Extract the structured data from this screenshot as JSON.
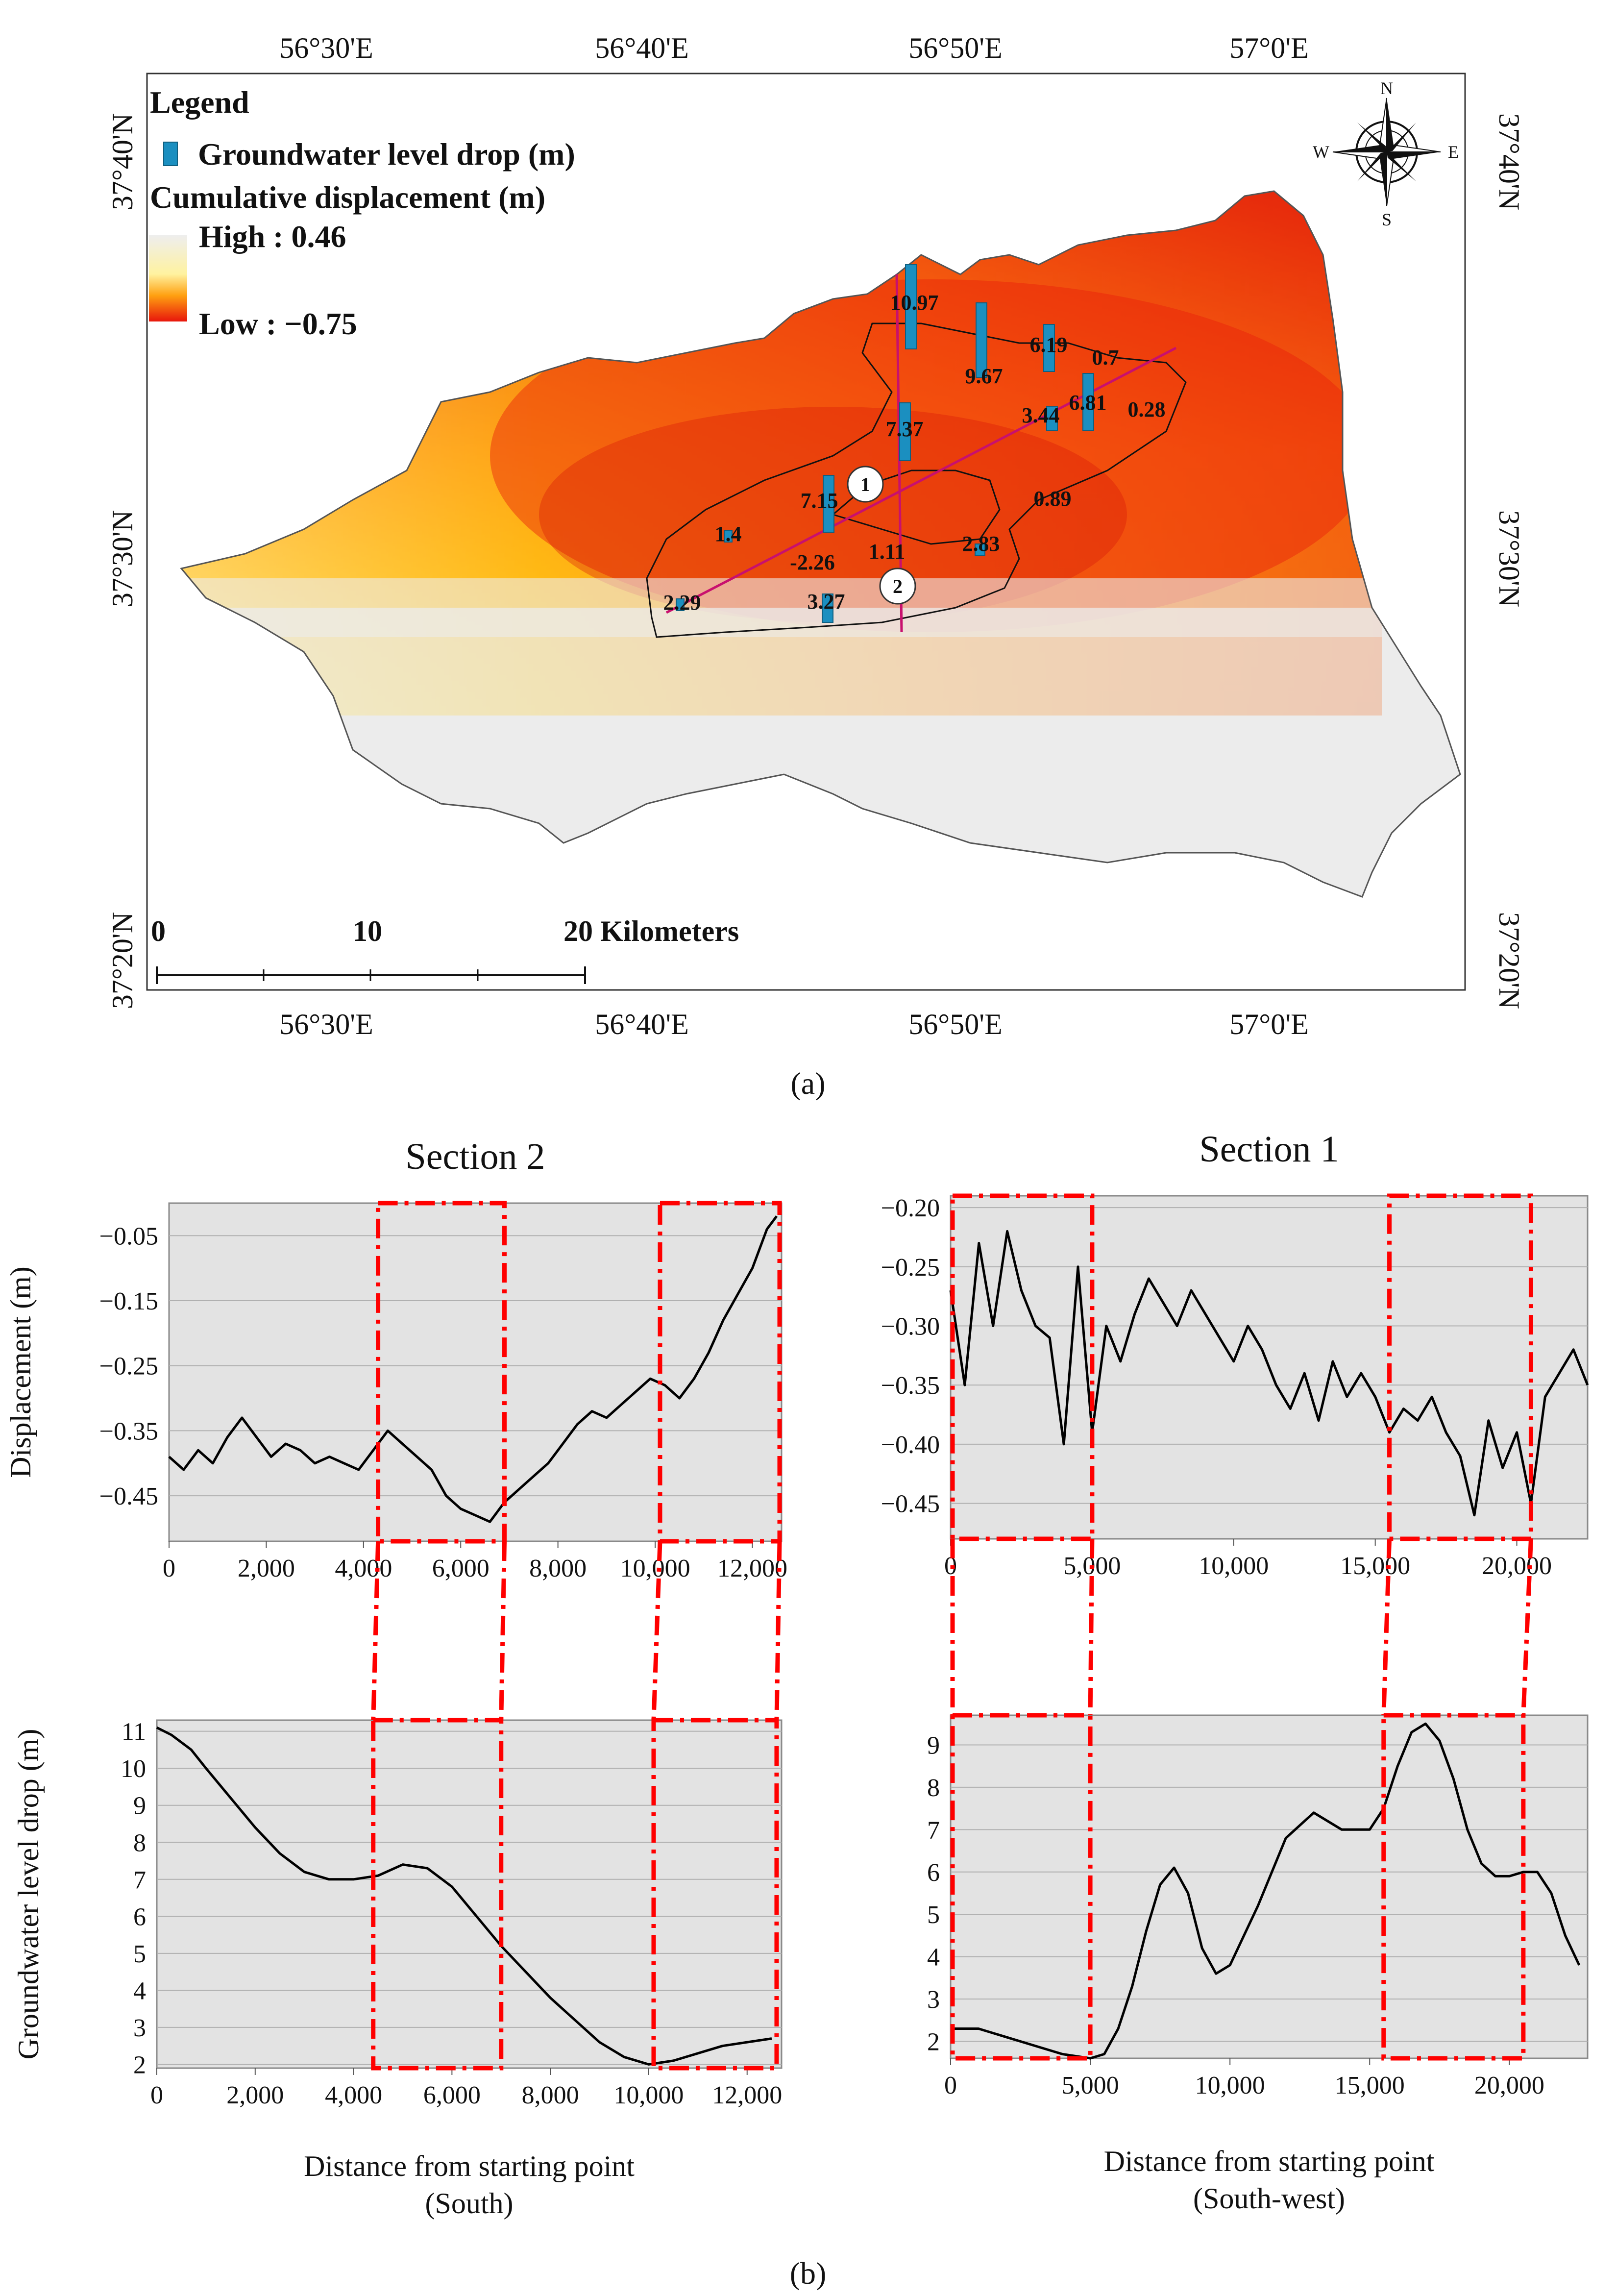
{
  "panel_a": {
    "caption": "(a)",
    "top_lon_labels": [
      "56°30'E",
      "56°40'E",
      "56°50'E",
      "57°0'E"
    ],
    "bottom_lon_labels": [
      "56°30'E",
      "56°40'E",
      "56°50'E",
      "57°0'E"
    ],
    "left_lat_labels": [
      "37°40'N",
      "37°30'N",
      "37°20'N"
    ],
    "right_lat_labels": [
      "37°40'N",
      "37°30'N",
      "37°20'N"
    ],
    "legend": {
      "title": "Legend",
      "well_label": "Groundwater level drop (m)",
      "displacement_title": "Cumulative displacement (m)",
      "high_label": "High : 0.46",
      "low_label": "Low : −0.75",
      "well_color": "#1b8fc0",
      "ramp_high_color": "#eeeeee",
      "ramp_low_color": "#e8160c"
    },
    "north_arrow": {
      "n": "N",
      "s": "S",
      "e": "E",
      "w": "W"
    },
    "scale_bar": {
      "ticks": [
        "0",
        "10",
        "20 Kilometers"
      ]
    },
    "section_markers": [
      "1",
      "2"
    ],
    "line_color": "#c8106e",
    "well_values": [
      "10.97",
      "6.19",
      "0.7",
      "9.67",
      "6.81",
      "0.28",
      "3.44",
      "7.37",
      "7.15",
      "0.89",
      "1.4",
      "1.11",
      "2.83",
      "-2.26",
      "2.29",
      "3.27"
    ]
  },
  "panel_b": {
    "caption": "(b)",
    "highlight_color": "#ff0000"
  },
  "chart_data": [
    {
      "type": "line",
      "title": "Section 2",
      "xlabel": "",
      "ylabel": "Displacement (m)",
      "xlim": [
        0,
        12600
      ],
      "ylim": [
        -0.52,
        0.0
      ],
      "xticks": [
        0,
        2000,
        4000,
        6000,
        8000,
        10000,
        12000
      ],
      "xtick_labels": [
        "0",
        "2,000",
        "4,000",
        "6,000",
        "8,000",
        "10,000",
        "12,000"
      ],
      "yticks": [
        -0.05,
        -0.15,
        -0.25,
        -0.35,
        -0.45
      ],
      "ytick_labels": [
        "−0.05",
        "−0.15",
        "−0.25",
        "−0.35",
        "−0.45"
      ],
      "series": [
        {
          "name": "Displacement",
          "x": [
            0,
            300,
            600,
            900,
            1200,
            1500,
            1800,
            2100,
            2400,
            2700,
            3000,
            3300,
            3600,
            3900,
            4200,
            4500,
            4800,
            5100,
            5400,
            5700,
            6000,
            6300,
            6600,
            6900,
            7200,
            7500,
            7800,
            8100,
            8400,
            8700,
            9000,
            9300,
            9600,
            9900,
            10200,
            10500,
            10800,
            11100,
            11400,
            11700,
            12000,
            12300,
            12500
          ],
          "y": [
            -0.39,
            -0.41,
            -0.38,
            -0.4,
            -0.36,
            -0.33,
            -0.36,
            -0.39,
            -0.37,
            -0.38,
            -0.4,
            -0.39,
            -0.4,
            -0.41,
            -0.38,
            -0.35,
            -0.37,
            -0.39,
            -0.41,
            -0.45,
            -0.47,
            -0.48,
            -0.49,
            -0.46,
            -0.44,
            -0.42,
            -0.4,
            -0.37,
            -0.34,
            -0.32,
            -0.33,
            -0.31,
            -0.29,
            -0.27,
            -0.28,
            -0.3,
            -0.27,
            -0.23,
            -0.18,
            -0.14,
            -0.1,
            -0.04,
            -0.02
          ]
        }
      ],
      "highlight_ranges": [
        [
          4300,
          6900
        ],
        [
          10100,
          12600
        ]
      ]
    },
    {
      "type": "line",
      "title": "Section 1",
      "xlabel": "",
      "ylabel": "",
      "xlim": [
        0,
        22500
      ],
      "ylim": [
        -0.48,
        -0.19
      ],
      "xticks": [
        0,
        5000,
        10000,
        15000,
        20000
      ],
      "xtick_labels": [
        "0",
        "5,000",
        "10,000",
        "15,000",
        "20,000"
      ],
      "yticks": [
        -0.2,
        -0.25,
        -0.3,
        -0.35,
        -0.4,
        -0.45
      ],
      "ytick_labels": [
        "−0.20",
        "−0.25",
        "−0.30",
        "−0.35",
        "−0.40",
        "−0.45"
      ],
      "series": [
        {
          "name": "Displacement",
          "x": [
            0,
            500,
            1000,
            1500,
            2000,
            2500,
            3000,
            3500,
            4000,
            4500,
            5000,
            5500,
            6000,
            6500,
            7000,
            7500,
            8000,
            8500,
            9000,
            9500,
            10000,
            10500,
            11000,
            11500,
            12000,
            12500,
            13000,
            13500,
            14000,
            14500,
            15000,
            15500,
            16000,
            16500,
            17000,
            17500,
            18000,
            18500,
            19000,
            19500,
            20000,
            20500,
            21000,
            21500,
            22000,
            22500
          ],
          "y": [
            -0.27,
            -0.35,
            -0.23,
            -0.3,
            -0.22,
            -0.27,
            -0.3,
            -0.31,
            -0.4,
            -0.25,
            -0.39,
            -0.3,
            -0.33,
            -0.29,
            -0.26,
            -0.28,
            -0.3,
            -0.27,
            -0.29,
            -0.31,
            -0.33,
            -0.3,
            -0.32,
            -0.35,
            -0.37,
            -0.34,
            -0.38,
            -0.33,
            -0.36,
            -0.34,
            -0.36,
            -0.39,
            -0.37,
            -0.38,
            -0.36,
            -0.39,
            -0.41,
            -0.46,
            -0.38,
            -0.42,
            -0.39,
            -0.45,
            -0.36,
            -0.34,
            -0.32,
            -0.35
          ]
        }
      ],
      "highlight_ranges": [
        [
          0,
          5000
        ],
        [
          15500,
          20500
        ]
      ]
    },
    {
      "type": "line",
      "title": "",
      "xlabel": "Distance from starting point",
      "xlabel_sub": "(South)",
      "ylabel": "Groundwater level drop (m)",
      "xlim": [
        0,
        12700
      ],
      "ylim": [
        1.9,
        11.3
      ],
      "xticks": [
        0,
        2000,
        4000,
        6000,
        8000,
        10000,
        12000
      ],
      "xtick_labels": [
        "0",
        "2,000",
        "4,000",
        "6,000",
        "8,000",
        "10,000",
        "12,000"
      ],
      "yticks": [
        2,
        3,
        4,
        5,
        6,
        7,
        8,
        9,
        10,
        11
      ],
      "ytick_labels": [
        "2",
        "3",
        "4",
        "5",
        "6",
        "7",
        "8",
        "9",
        "10",
        "11"
      ],
      "series": [
        {
          "name": "Groundwater level drop",
          "x": [
            0,
            300,
            700,
            1000,
            1500,
            2000,
            2500,
            3000,
            3500,
            4000,
            4500,
            5000,
            5500,
            6000,
            6500,
            7000,
            7500,
            8000,
            8500,
            9000,
            9500,
            10000,
            10500,
            11000,
            11500,
            12000,
            12500
          ],
          "y": [
            11.1,
            10.9,
            10.5,
            10.0,
            9.2,
            8.4,
            7.7,
            7.2,
            7.0,
            7.0,
            7.1,
            7.4,
            7.3,
            6.8,
            6.0,
            5.2,
            4.5,
            3.8,
            3.2,
            2.6,
            2.2,
            2.0,
            2.1,
            2.3,
            2.5,
            2.6,
            2.7
          ]
        }
      ],
      "highlight_ranges": [
        [
          4400,
          7000
        ],
        [
          10100,
          12600
        ]
      ]
    },
    {
      "type": "line",
      "title": "",
      "xlabel": "Distance from starting point",
      "xlabel_sub": "(South-west)",
      "ylabel": "",
      "xlim": [
        0,
        22800
      ],
      "ylim": [
        1.6,
        9.7
      ],
      "xticks": [
        0,
        5000,
        10000,
        15000,
        20000
      ],
      "xtick_labels": [
        "0",
        "5,000",
        "10,000",
        "15,000",
        "20,000"
      ],
      "yticks": [
        2,
        3,
        4,
        5,
        6,
        7,
        8,
        9
      ],
      "ytick_labels": [
        "2",
        "3",
        "4",
        "5",
        "6",
        "7",
        "8",
        "9"
      ],
      "series": [
        {
          "name": "Groundwater level drop",
          "x": [
            0,
            1000,
            2000,
            3000,
            4000,
            5000,
            5500,
            6000,
            6500,
            7000,
            7500,
            8000,
            8500,
            9000,
            9500,
            10000,
            11000,
            12000,
            13000,
            14000,
            15000,
            15500,
            16000,
            16500,
            17000,
            17500,
            18000,
            18500,
            19000,
            19500,
            20000,
            20500,
            21000,
            21500,
            22000,
            22500
          ],
          "y": [
            2.3,
            2.3,
            2.1,
            1.9,
            1.7,
            1.6,
            1.7,
            2.3,
            3.3,
            4.6,
            5.7,
            6.1,
            5.5,
            4.2,
            3.6,
            3.8,
            5.2,
            6.8,
            7.4,
            7.0,
            7.0,
            7.5,
            8.5,
            9.3,
            9.5,
            9.1,
            8.2,
            7.0,
            6.2,
            5.9,
            5.9,
            6.0,
            6.0,
            5.5,
            4.5,
            3.8
          ]
        }
      ],
      "highlight_ranges": [
        [
          0,
          5000
        ],
        [
          15500,
          20500
        ]
      ]
    }
  ]
}
